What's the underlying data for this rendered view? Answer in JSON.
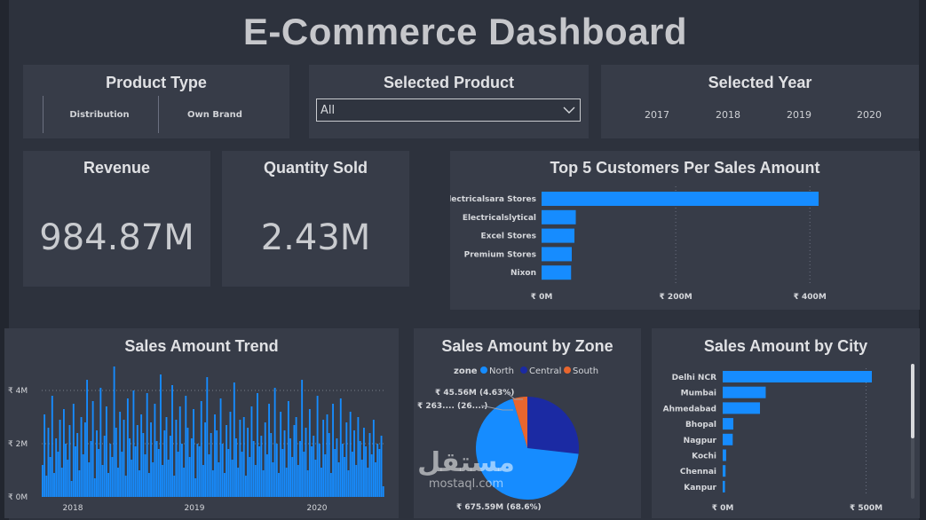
{
  "dashboard": {
    "title": "E-Commerce Dashboard"
  },
  "filters": {
    "product_type": {
      "title": "Product Type",
      "options": [
        "Distribution",
        "Own Brand"
      ]
    },
    "selected_product": {
      "title": "Selected Product",
      "value": "All"
    },
    "selected_year": {
      "title": "Selected Year",
      "years": [
        "2017",
        "2018",
        "2019",
        "2020"
      ]
    }
  },
  "kpis": {
    "revenue": {
      "label": "Revenue",
      "value": "984.87M"
    },
    "quantity": {
      "label": "Quantity Sold",
      "value": "2.43M"
    }
  },
  "colors": {
    "bar": "#168cff",
    "north": "#168cff",
    "central": "#1b2aa3",
    "south": "#e8662e",
    "background": "#2d323d",
    "card": "#373c48"
  },
  "chart_data": [
    {
      "id": "top_customers",
      "type": "bar",
      "orientation": "horizontal",
      "title": "Top 5 Customers Per Sales Amount",
      "categories": [
        "Electricalsara Stores",
        "Electricalslytical",
        "Excel Stores",
        "Premium Stores",
        "Nixon"
      ],
      "values": [
        413,
        51,
        49,
        45,
        44
      ],
      "xlim": [
        0,
        450
      ],
      "xticks": [
        0,
        200,
        400
      ],
      "xtick_labels": [
        "₹ 0M",
        "₹ 200M",
        "₹ 400M"
      ],
      "grid": true
    },
    {
      "id": "sales_trend",
      "type": "bar",
      "title": "Sales Amount Trend",
      "x_labels": [
        "2018",
        "2019",
        "2020"
      ],
      "ylim": [
        0,
        5
      ],
      "yticks": [
        0,
        2,
        4
      ],
      "ytick_labels": [
        "₹ 0M",
        "₹ 2M",
        "₹ 4M"
      ],
      "unit": "M",
      "values": [
        1.2,
        3.1,
        0.8,
        2.6,
        1.5,
        3.8,
        0.9,
        2.2,
        1.7,
        2.9,
        1.1,
        3.3,
        2.0,
        1.4,
        2.7,
        0.6,
        3.5,
        1.9,
        2.4,
        1.0,
        3.0,
        1.6,
        2.8,
        4.4,
        1.3,
        2.1,
        3.6,
        0.7,
        2.5,
        1.8,
        4.1,
        1.2,
        2.3,
        3.4,
        0.9,
        2.0,
        1.5,
        4.9,
        2.6,
        1.1,
        3.2,
        1.7,
        2.9,
        0.8,
        3.7,
        2.2,
        1.4,
        4.0,
        1.9,
        2.7,
        1.0,
        3.1,
        2.4,
        1.6,
        3.9,
        0.9,
        2.8,
        1.3,
        3.5,
        2.1,
        1.8,
        4.6,
        1.2,
        2.5,
        3.0,
        1.4,
        2.3,
        4.2,
        0.8,
        2.9,
        1.7,
        3.4,
        2.0,
        1.1,
        3.8,
        2.6,
        1.5,
        2.2,
        3.3,
        0.7,
        2.0,
        1.9,
        3.6,
        1.2,
        2.8,
        4.5,
        1.6,
        2.4,
        1.0,
        3.1,
        2.5,
        1.3,
        3.7,
        2.0,
        0.9,
        2.7,
        1.8,
        3.2,
        1.4,
        4.3,
        2.2,
        1.1,
        2.9,
        1.7,
        3.0,
        0.8,
        2.6,
        1.5,
        3.4,
        2.1,
        1.2,
        3.9,
        1.9,
        2.3,
        1.0,
        2.8,
        1.6,
        3.5,
        2.4,
        1.3,
        4.1,
        2.0,
        0.9,
        3.2,
        1.8,
        2.5,
        1.1,
        3.6,
        2.2,
        1.5,
        2.7,
        3.0,
        1.2,
        2.1,
        4.4,
        1.7,
        2.6,
        1.0,
        3.3,
        1.9,
        2.3,
        1.4,
        3.8,
        2.0,
        1.1,
        2.9,
        1.6,
        3.1,
        2.4,
        0.9,
        3.5,
        1.8,
        2.2,
        1.3,
        3.7,
        2.0,
        1.5,
        2.8,
        1.0,
        3.2,
        1.7,
        2.5,
        1.2,
        3.0,
        2.1,
        1.4,
        2.6,
        1.9,
        1.1,
        2.4,
        1.6,
        2.9,
        1.3,
        2.0,
        1.8,
        2.3,
        0.4
      ]
    },
    {
      "id": "zone_pie",
      "type": "pie",
      "title": "Sales Amount by Zone",
      "legend_title": "zone",
      "labels": [
        "North",
        "Central",
        "South"
      ],
      "values": [
        675.59,
        263.72,
        45.56
      ],
      "data_labels": [
        "₹ 675.59M (68.6%)",
        "₹ 263.... (26....)",
        "₹ 45.56M (4.63%)"
      ]
    },
    {
      "id": "city_sales",
      "type": "bar",
      "orientation": "horizontal",
      "title": "Sales Amount by City",
      "categories": [
        "Delhi NCR",
        "Mumbai",
        "Ahmedabad",
        "Bhopal",
        "Nagpur",
        "Kochi",
        "Chennai",
        "Kanpur"
      ],
      "values": [
        520,
        150,
        130,
        37,
        35,
        12,
        10,
        8
      ],
      "xlim": [
        0,
        650
      ],
      "xticks": [
        0,
        500
      ],
      "xtick_labels": [
        "₹ 0M",
        "₹ 500M"
      ],
      "grid": true
    }
  ],
  "watermark": {
    "logo": "مستقل",
    "url": "mostaql.com"
  }
}
